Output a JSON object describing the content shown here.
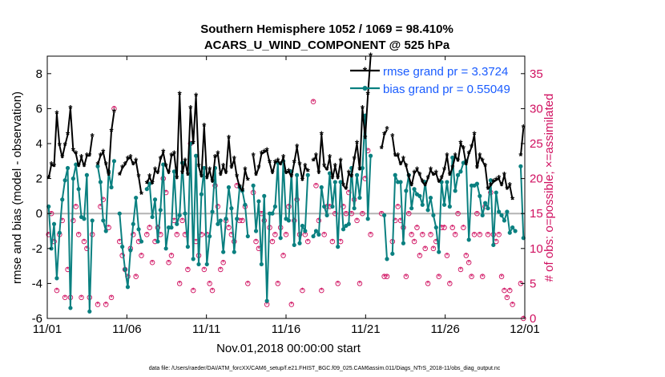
{
  "chart_data": {
    "type": "line",
    "title_line1": "Southern Hemisphere 1052 / 1069 = 98.410%",
    "title_line2": "ACARS_U_WIND_COMPONENT @ 525 hPa",
    "xlabel": "Nov.01,2018 00:00:00 start",
    "ylabel_left": "rmse and bias (model - observation)",
    "ylabel_right": "# of obs: o=possible; ×=assimilated",
    "footnote": "data file: /Users/raeder/DAI/ATM_forcXX/CAM6_setup/f.e21.FHIST_BGC.f09_025.CAM6assim.011/Diags_NTrS_2018-11/obs_diag_output.nc",
    "x_ticks": [
      "11/01",
      "11/06",
      "11/11",
      "11/16",
      "11/21",
      "11/26",
      "12/01"
    ],
    "y_ticks_left": [
      -6,
      -4,
      -2,
      0,
      2,
      4,
      6,
      8
    ],
    "y_ticks_right": [
      0,
      5,
      10,
      15,
      20,
      25,
      30,
      35
    ],
    "xlim": [
      0,
      30
    ],
    "ylim_left": [
      -6,
      9
    ],
    "ylim_right": [
      0,
      37.5
    ],
    "grid": false,
    "legend_position": "top-right",
    "colors": {
      "rmse": "#000000",
      "bias": "#0a8080",
      "obs": "#d01060",
      "zero": "#b3b3b3"
    },
    "series": [
      {
        "name": "rmse grand pr = 3.3724",
        "y": [
          2.0,
          2.8,
          2.7,
          5.7,
          3.9,
          3.2,
          3.9,
          4.5,
          6.0,
          3.6,
          3.4,
          2.7,
          3.2,
          2.7,
          3.3,
          3.3,
          4.4,
          null,
          2.8,
          3.3,
          3.5,
          2.8,
          2.2,
          4.7,
          5.8,
          null,
          2.2,
          2.6,
          2.8,
          3.1,
          3.2,
          2.8,
          3.0,
          2.1,
          1.1,
          null,
          1.7,
          2.1,
          1.7,
          2.5,
          2.3,
          3.1,
          3.5,
          2.7,
          2.3,
          3.3,
          3.4,
          2.0,
          6.8,
          2.3,
          3.0,
          2.2,
          6.0,
          4.0,
          6.7,
          2.7,
          2.1,
          5.0,
          2.0,
          2.5,
          1.8,
          3.2,
          3.4,
          2.2,
          2.7,
          2.3,
          4.3,
          2.6,
          3.1,
          2.1,
          1.5,
          1.3,
          2.5,
          1.9,
          null,
          3.3,
          2.2,
          2.6,
          3.4,
          3.5,
          3.6,
          2.9,
          2.3,
          2.9,
          3.0,
          2.8,
          3.2,
          2.3,
          2.4,
          2.1,
          2.9,
          3.8,
          2.8,
          1.9,
          2.7,
          2.4,
          null,
          3.0,
          3.3,
          2.3,
          4.5,
          2.7,
          2.5,
          3.2,
          2.0,
          2.7,
          2.0,
          3.0,
          1.6,
          1.4,
          2.3,
          2.1,
          3.1,
          4.0,
          2.5,
          6.0,
          4.3,
          6.8,
          9.0,
          null,
          null,
          null,
          3.7,
          4.5,
          4.8,
          null,
          4.4,
          3.3,
          3.3,
          2.8,
          3.1,
          2.7,
          2.1,
          1.6,
          2.3,
          2.5,
          2.2,
          1.8,
          1.6,
          2.0,
          2.5,
          2.2,
          2.3,
          1.8,
          2.0,
          2.5,
          3.3,
          2.2,
          2.6,
          3.3,
          3.0,
          4.0,
          3.7,
          2.8,
          3.4,
          3.8,
          4.5,
          2.6,
          3.3,
          3.0,
          2.7,
          1.4,
          1.6,
          1.8,
          1.9,
          2.0,
          1.6,
          2.2,
          1.4,
          1.6,
          0.8,
          null,
          null,
          3.3,
          4.9
        ],
        "color": "#000000"
      },
      {
        "name": "bias grand pr = 0.55049",
        "y": [
          0.4,
          -2.0,
          -0.6,
          -3.7,
          -1.1,
          0.8,
          1.9,
          2.6,
          -5.4,
          2.0,
          2.8,
          1.4,
          -0.2,
          -0.3,
          2.2,
          -5.6,
          -0.4,
          null,
          2.7,
          1.8,
          -0.4,
          -1.0,
          2.4,
          1.5,
          3.0,
          null,
          0.0,
          -1.9,
          -3.2,
          -4.2,
          -2.1,
          -0.6,
          0.9,
          -0.9,
          -1.6,
          null,
          1.4,
          1.7,
          -0.2,
          0.8,
          -1.6,
          0.2,
          2.8,
          -2.0,
          -0.8,
          -0.8,
          2.4,
          -0.6,
          -0.1,
          2.9,
          0.0,
          -1.9,
          4.0,
          -2.6,
          3.3,
          -2.9,
          1.1,
          2.6,
          -2.9,
          -1.3,
          0.1,
          2.6,
          -0.6,
          -0.4,
          -2.2,
          -0.3,
          1.5,
          0.3,
          -2.2,
          -0.3,
          1.5,
          1.3,
          0.5,
          -1.3,
          null,
          1.6,
          -1.0,
          0.7,
          -2.9,
          1.0,
          -5.0,
          0.0,
          0.0,
          0.4,
          2.9,
          -1.4,
          3.0,
          -0.3,
          -0.4,
          2.4,
          -1.8,
          2.2,
          -1.7,
          -0.7,
          -1.0,
          2.2,
          null,
          -1.3,
          -1.0,
          -1.2,
          1.5,
          0.4,
          -0.1,
          2.3,
          0.4,
          1.8,
          -1.9,
          1.8,
          -0.9,
          -0.7,
          -0.6,
          2.6,
          0.3,
          2.2,
          0.9,
          2.6,
          5.6,
          -0.3,
          3.3,
          null,
          null,
          null,
          null,
          -0.1,
          -2.6,
          null,
          -2.3,
          2.2,
          1.8,
          1.8,
          -1.7,
          1.3,
          2.2,
          0.3,
          1.4,
          1.1,
          1.0,
          0.5,
          1.8,
          0.2,
          0.9,
          -0.1,
          -0.8,
          -2.2,
          1.8,
          0.5,
          1.8,
          0.4,
          3.2,
          1.3,
          2.2,
          2.4,
          2.9,
          3.0,
          -1.5,
          1.6,
          1.6,
          1.7,
          1.0,
          -0.1,
          0.6,
          0.3,
          1.9,
          -1.8,
          1.2,
          0.1,
          -0.1,
          -0.4,
          0.1,
          -1.1,
          -0.8,
          -1.0,
          null,
          2.7,
          -1.4
        ],
        "color": "#0a8080"
      }
    ],
    "obs_possible": [
      12,
      15,
      11,
      4,
      12,
      14,
      3,
      7,
      3,
      14,
      16,
      12,
      3,
      11,
      10,
      3,
      12,
      null,
      2,
      16,
      17,
      2,
      13,
      3,
      30,
      null,
      11,
      9,
      7,
      6,
      10,
      12,
      6,
      11,
      9,
      null,
      12,
      13,
      8,
      11,
      13,
      12,
      20,
      18,
      8,
      9,
      14,
      12,
      5,
      14,
      12,
      7,
      25,
      4,
      11,
      9,
      12,
      7,
      12,
      5,
      4,
      19,
      16,
      7,
      8,
      14,
      13,
      12,
      11,
      19,
      14,
      14,
      16,
      5,
      null,
      18,
      11,
      10,
      15,
      14,
      2,
      13,
      11,
      12,
      5,
      13,
      9,
      12,
      16,
      2,
      14,
      17,
      12,
      4,
      12,
      11,
      null,
      31,
      19,
      14,
      4,
      12,
      16,
      16,
      11,
      15,
      5,
      11,
      16,
      15,
      18,
      15,
      17,
      14,
      5,
      15,
      20,
      24,
      12,
      null,
      null,
      null,
      15,
      6,
      6,
      null,
      11,
      14,
      16,
      14,
      13,
      6,
      15,
      12,
      11,
      13,
      9,
      12,
      10,
      5,
      12,
      10,
      11,
      6,
      13,
      13,
      9,
      5,
      13,
      12,
      15,
      7,
      13,
      9,
      8,
      6,
      12,
      15,
      12,
      6,
      16,
      12,
      18,
      12,
      11,
      12,
      6,
      4,
      3,
      4,
      2,
      null,
      null,
      5,
      0
    ]
  }
}
